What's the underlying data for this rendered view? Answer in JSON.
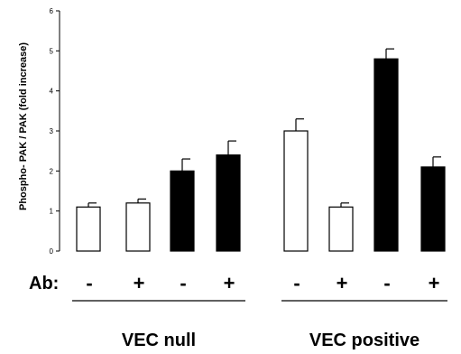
{
  "chart_data": {
    "type": "bar",
    "title": "",
    "ylabel": "Phospho- PAK / PAK (fold increase)",
    "xlabel": "",
    "ylim": [
      0,
      6
    ],
    "yticks": [
      0,
      1,
      2,
      3,
      4,
      5,
      6
    ],
    "grid": false,
    "ab_label": "Ab:",
    "groups": [
      {
        "label": "VEC null",
        "bars": [
          {
            "ab": "-",
            "value": 1.1,
            "error": 0.1,
            "fill": "white"
          },
          {
            "ab": "+",
            "value": 1.2,
            "error": 0.1,
            "fill": "white"
          },
          {
            "ab": "-",
            "value": 2.0,
            "error": 0.3,
            "fill": "black"
          },
          {
            "ab": "+",
            "value": 2.4,
            "error": 0.35,
            "fill": "black"
          }
        ]
      },
      {
        "label": "VEC positive",
        "bars": [
          {
            "ab": "-",
            "value": 3.0,
            "error": 0.3,
            "fill": "white"
          },
          {
            "ab": "+",
            "value": 1.1,
            "error": 0.1,
            "fill": "white"
          },
          {
            "ab": "-",
            "value": 4.8,
            "error": 0.25,
            "fill": "black"
          },
          {
            "ab": "+",
            "value": 2.1,
            "error": 0.25,
            "fill": "black"
          }
        ]
      }
    ]
  }
}
